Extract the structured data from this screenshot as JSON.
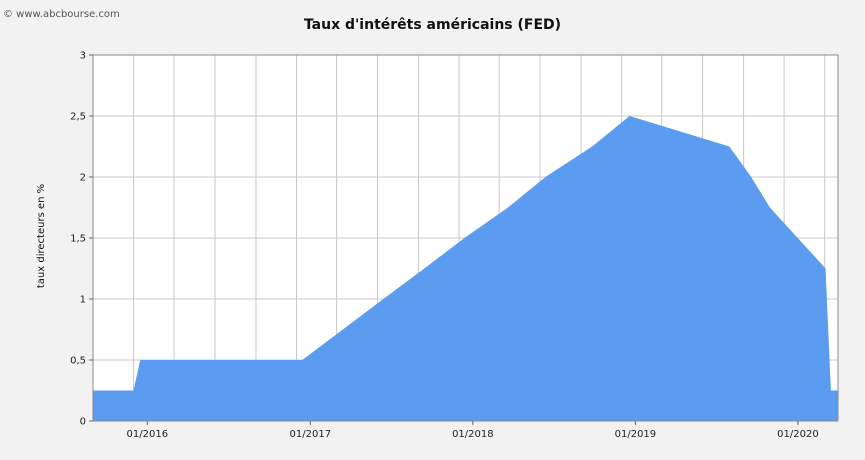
{
  "copyright": "© www.abcbourse.com",
  "chart_data": {
    "type": "area",
    "title": "Taux d'intérêts américains (FED)",
    "xlabel": "",
    "ylabel": "taux directeurs en %",
    "ylim": [
      0,
      3
    ],
    "y_ticks": [
      0,
      0.5,
      1,
      1.5,
      2,
      2.5,
      3
    ],
    "y_tick_labels": [
      "0",
      "0,5",
      "1",
      "1,5",
      "2",
      "2,5",
      "3"
    ],
    "x_range": [
      "2015-09-01",
      "2020-03-31"
    ],
    "x_ticks": [
      "2016-01-01",
      "2017-01-01",
      "2018-01-01",
      "2019-01-01",
      "2020-01-01"
    ],
    "x_tick_labels": [
      "01/2016",
      "01/2017",
      "01/2018",
      "01/2019",
      "01/2020"
    ],
    "grid": true,
    "fill_color": "#5b9bf0",
    "points": [
      {
        "x": "2015-09-01",
        "y": 0.25
      },
      {
        "x": "2015-12-01",
        "y": 0.25
      },
      {
        "x": "2015-12-16",
        "y": 0.5
      },
      {
        "x": "2016-12-14",
        "y": 0.5
      },
      {
        "x": "2017-03-15",
        "y": 0.75
      },
      {
        "x": "2017-06-14",
        "y": 1.0
      },
      {
        "x": "2017-09-14",
        "y": 1.25
      },
      {
        "x": "2017-12-13",
        "y": 1.5
      },
      {
        "x": "2018-03-21",
        "y": 1.75
      },
      {
        "x": "2018-06-13",
        "y": 2.0
      },
      {
        "x": "2018-09-26",
        "y": 2.25
      },
      {
        "x": "2018-12-19",
        "y": 2.5
      },
      {
        "x": "2019-07-31",
        "y": 2.25
      },
      {
        "x": "2019-09-18",
        "y": 2.0
      },
      {
        "x": "2019-10-30",
        "y": 1.75
      },
      {
        "x": "2020-03-03",
        "y": 1.25
      },
      {
        "x": "2020-03-15",
        "y": 0.25
      },
      {
        "x": "2020-03-31",
        "y": 0.25
      }
    ]
  }
}
